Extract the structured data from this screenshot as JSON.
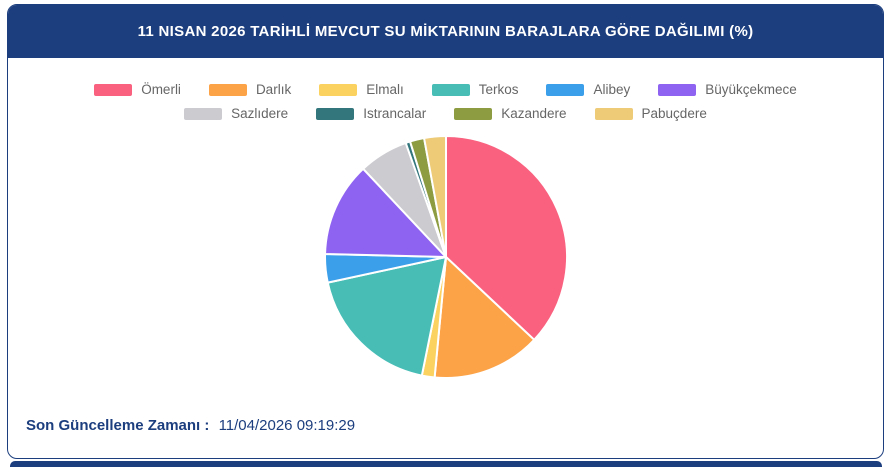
{
  "header": {
    "title": "11 NISAN 2026 TARİHLİ MEVCUT SU MİKTARININ BARAJLARA GÖRE DAĞILIMI (%)"
  },
  "footer": {
    "label": "Son Güncelleme Zamanı :",
    "value": "11/04/2026 09:19:29"
  },
  "colors": {
    "navy": "#1C3E7E",
    "legend_text": "#666666",
    "slice_border": "#FFFFFF"
  },
  "chart_data": {
    "type": "pie",
    "title": "11 NISAN 2026 TARİHLİ MEVCUT SU MİKTARININ BARAJLARA GÖRE DAĞILIMI (%)",
    "unit": "%",
    "legend_position": "top",
    "start_angle": "12-oclock-clockwise",
    "total": 100,
    "series": [
      {
        "name": "Ömerli",
        "value": 37.0,
        "color": "#F9617F"
      },
      {
        "name": "Darlık",
        "value": 14.5,
        "color": "#FCA247"
      },
      {
        "name": "Elmalı",
        "value": 1.7,
        "color": "#FBD25F"
      },
      {
        "name": "Terkos",
        "value": 18.4,
        "color": "#47BDB6"
      },
      {
        "name": "Alibey",
        "value": 3.8,
        "color": "#3C9FE9"
      },
      {
        "name": "Büyükçekmece",
        "value": 12.6,
        "color": "#8F63F1"
      },
      {
        "name": "Sazlıdere",
        "value": 6.6,
        "color": "#CBCBD0"
      },
      {
        "name": "Istrancalar",
        "value": 0.6,
        "color": "#33767C"
      },
      {
        "name": "Kazandere",
        "value": 1.9,
        "color": "#8E9C41"
      },
      {
        "name": "Pabuçdere",
        "value": 2.9,
        "color": "#EDCB77"
      }
    ]
  }
}
